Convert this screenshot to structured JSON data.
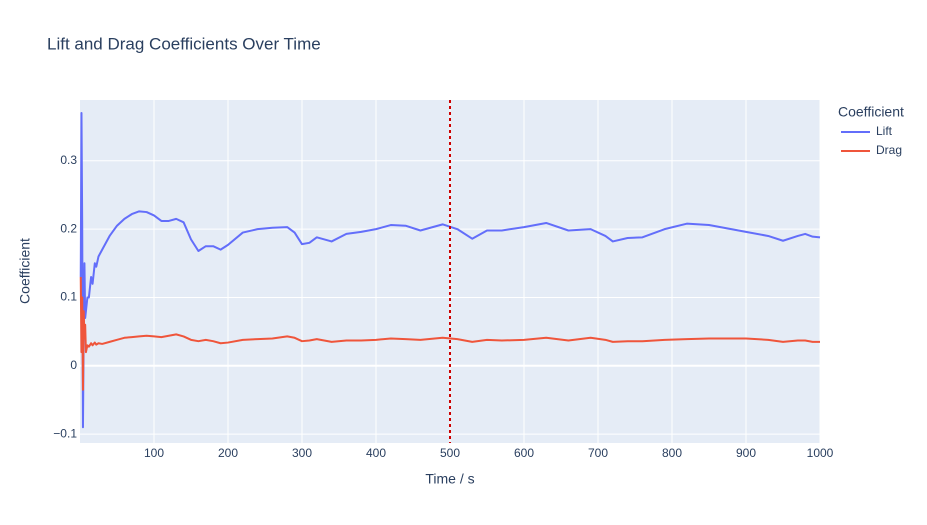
{
  "chart_data": {
    "type": "line",
    "title": "Lift and Drag Coefficients Over Time",
    "x_label": "Time / s",
    "y_label": "Coefficient",
    "legend_title": "Coefficient",
    "x": [
      1,
      2,
      3,
      4,
      5,
      6,
      7,
      8,
      10,
      12,
      15,
      17,
      20,
      22,
      25,
      30,
      40,
      50,
      60,
      70,
      80,
      90,
      100,
      110,
      120,
      130,
      140,
      150,
      160,
      170,
      180,
      190,
      200,
      220,
      240,
      260,
      280,
      290,
      300,
      310,
      320,
      340,
      360,
      380,
      400,
      420,
      440,
      460,
      490,
      510,
      530,
      550,
      570,
      600,
      630,
      660,
      690,
      710,
      720,
      740,
      760,
      790,
      820,
      850,
      880,
      900,
      930,
      950,
      970,
      980,
      990,
      1000
    ],
    "series": [
      {
        "name": "Lift",
        "color": "#636efa",
        "values": [
          0.13,
          0.37,
          0.2,
          -0.09,
          0.05,
          0.15,
          0.07,
          0.08,
          0.1,
          0.1,
          0.13,
          0.12,
          0.15,
          0.145,
          0.16,
          0.17,
          0.19,
          0.205,
          0.215,
          0.222,
          0.226,
          0.225,
          0.22,
          0.212,
          0.212,
          0.215,
          0.21,
          0.185,
          0.168,
          0.175,
          0.175,
          0.17,
          0.177,
          0.195,
          0.2,
          0.202,
          0.203,
          0.195,
          0.178,
          0.18,
          0.188,
          0.182,
          0.193,
          0.196,
          0.2,
          0.206,
          0.205,
          0.198,
          0.207,
          0.2,
          0.186,
          0.198,
          0.198,
          0.203,
          0.209,
          0.198,
          0.2,
          0.19,
          0.182,
          0.187,
          0.188,
          0.2,
          0.208,
          0.206,
          0.2,
          0.196,
          0.19,
          0.183,
          0.19,
          0.193,
          0.189,
          0.188
        ]
      },
      {
        "name": "Drag",
        "color": "#ef553b",
        "values": [
          0.13,
          0.02,
          0.1,
          -0.035,
          0.08,
          0.04,
          0.06,
          0.02,
          0.03,
          0.028,
          0.033,
          0.03,
          0.034,
          0.031,
          0.033,
          0.032,
          0.035,
          0.038,
          0.041,
          0.042,
          0.043,
          0.044,
          0.043,
          0.042,
          0.044,
          0.046,
          0.043,
          0.038,
          0.036,
          0.038,
          0.036,
          0.033,
          0.034,
          0.038,
          0.039,
          0.04,
          0.043,
          0.041,
          0.036,
          0.037,
          0.039,
          0.035,
          0.037,
          0.037,
          0.038,
          0.04,
          0.039,
          0.038,
          0.041,
          0.039,
          0.035,
          0.038,
          0.037,
          0.038,
          0.041,
          0.037,
          0.041,
          0.038,
          0.035,
          0.036,
          0.036,
          0.038,
          0.039,
          0.04,
          0.04,
          0.04,
          0.038,
          0.035,
          0.037,
          0.037,
          0.035,
          0.035
        ]
      }
    ],
    "vline": {
      "x": 500,
      "color": "#cc0000"
    },
    "xlim": [
      0,
      1000
    ],
    "xticks": [
      100,
      200,
      300,
      400,
      500,
      600,
      700,
      800,
      900,
      1000
    ],
    "ylim": [
      -0.113,
      0.389
    ],
    "yticks": [
      {
        "value": -0.1,
        "label": "−0.1"
      },
      0,
      0.1,
      0.2,
      0.3
    ],
    "grid": true
  }
}
